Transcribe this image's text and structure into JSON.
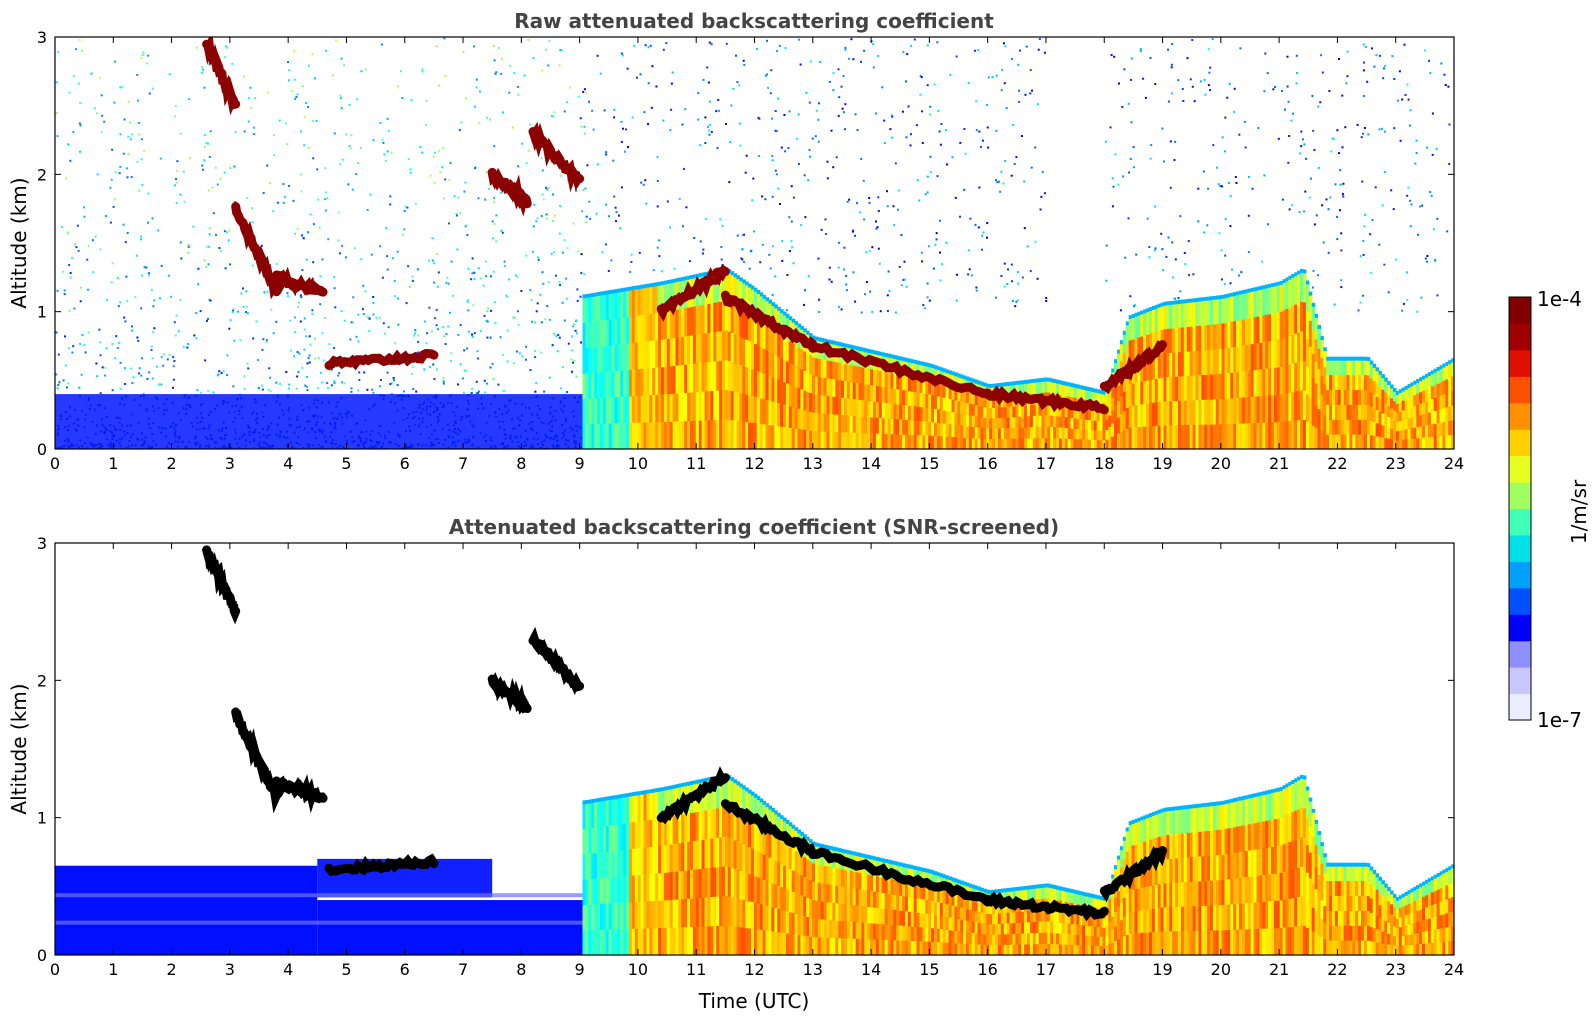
{
  "chart_data": [
    {
      "type": "heatmap",
      "title": "Raw attenuated backscattering coefficient",
      "xlabel": "",
      "ylabel": "Altitude (km)",
      "xlim": [
        0,
        24
      ],
      "ylim": [
        0,
        3
      ],
      "xticks": [
        "0",
        "1",
        "2",
        "3",
        "4",
        "5",
        "6",
        "7",
        "8",
        "9",
        "10",
        "11",
        "12",
        "13",
        "14",
        "15",
        "16",
        "17",
        "18",
        "19",
        "20",
        "21",
        "22",
        "23",
        "24"
      ],
      "yticks": [
        "0",
        "1",
        "2",
        "3"
      ],
      "grid": false,
      "colorscale": "jet",
      "features": {
        "cloud_layers": [
          {
            "t": [
              2.6,
              3.1
            ],
            "alt": [
              2.95,
              2.5
            ]
          },
          {
            "t": [
              3.1,
              3.8
            ],
            "alt": [
              1.75,
              1.15
            ]
          },
          {
            "t": [
              3.8,
              4.6
            ],
            "alt": [
              1.25,
              1.15
            ]
          },
          {
            "t": [
              4.7,
              6.5
            ],
            "alt": [
              0.62,
              0.68
            ]
          },
          {
            "t": [
              7.5,
              8.1
            ],
            "alt": [
              2.0,
              1.8
            ]
          },
          {
            "t": [
              8.2,
              9.0
            ],
            "alt": [
              2.3,
              1.95
            ]
          },
          {
            "t": [
              10.4,
              11.5
            ],
            "alt": [
              1.0,
              1.3
            ]
          },
          {
            "t": [
              11.5,
              13.0
            ],
            "alt": [
              1.1,
              0.75
            ]
          },
          {
            "t": [
              13.0,
              16.0
            ],
            "alt": [
              0.75,
              0.4
            ]
          },
          {
            "t": [
              16.0,
              18.0
            ],
            "alt": [
              0.4,
              0.3
            ]
          },
          {
            "t": [
              18.0,
              19.0
            ],
            "alt": [
              0.45,
              0.75
            ]
          }
        ],
        "boundary_layer_top_km": [
          [
            9.0,
            1.1
          ],
          [
            10.4,
            1.2
          ],
          [
            11.5,
            1.3
          ],
          [
            12.0,
            1.15
          ],
          [
            13.0,
            0.8
          ],
          [
            14.0,
            0.7
          ],
          [
            15.0,
            0.6
          ],
          [
            16.0,
            0.45
          ],
          [
            17.0,
            0.5
          ],
          [
            18.0,
            0.4
          ],
          [
            18.4,
            0.95
          ],
          [
            19.0,
            1.05
          ],
          [
            20.0,
            1.1
          ],
          [
            21.0,
            1.2
          ],
          [
            21.4,
            1.3
          ],
          [
            21.8,
            0.65
          ],
          [
            22.5,
            0.65
          ],
          [
            23.0,
            0.4
          ],
          [
            24.0,
            0.65
          ]
        ]
      }
    },
    {
      "type": "heatmap",
      "title": "Attenuated backscattering coefficient (SNR-screened)",
      "xlabel": "Time (UTC)",
      "ylabel": "Altitude (km)",
      "xlim": [
        0,
        24
      ],
      "ylim": [
        0,
        3
      ],
      "xticks": [
        "0",
        "1",
        "2",
        "3",
        "4",
        "5",
        "6",
        "7",
        "8",
        "9",
        "10",
        "11",
        "12",
        "13",
        "14",
        "15",
        "16",
        "17",
        "18",
        "19",
        "20",
        "21",
        "22",
        "23",
        "24"
      ],
      "yticks": [
        "0",
        "1",
        "2",
        "3"
      ],
      "grid": false,
      "colorscale": "jet",
      "features": {
        "low_signal_layer": {
          "t": [
            0,
            9.1
          ],
          "alt_top": [
            0.65,
            0.65,
            0.4
          ]
        },
        "saturated_cloud_color": "#000000"
      }
    }
  ],
  "colorbar": {
    "label": "1/m/sr",
    "max_label": "1e-4",
    "min_label": "1e-7",
    "colors": [
      "#ececff",
      "#c8c8ff",
      "#8f8fff",
      "#0000ff",
      "#0050ff",
      "#00a0ff",
      "#00e0e6",
      "#40ffb8",
      "#a0ff60",
      "#e6ff20",
      "#ffd000",
      "#ff9000",
      "#ff5000",
      "#e01000",
      "#a00000",
      "#800000"
    ]
  }
}
